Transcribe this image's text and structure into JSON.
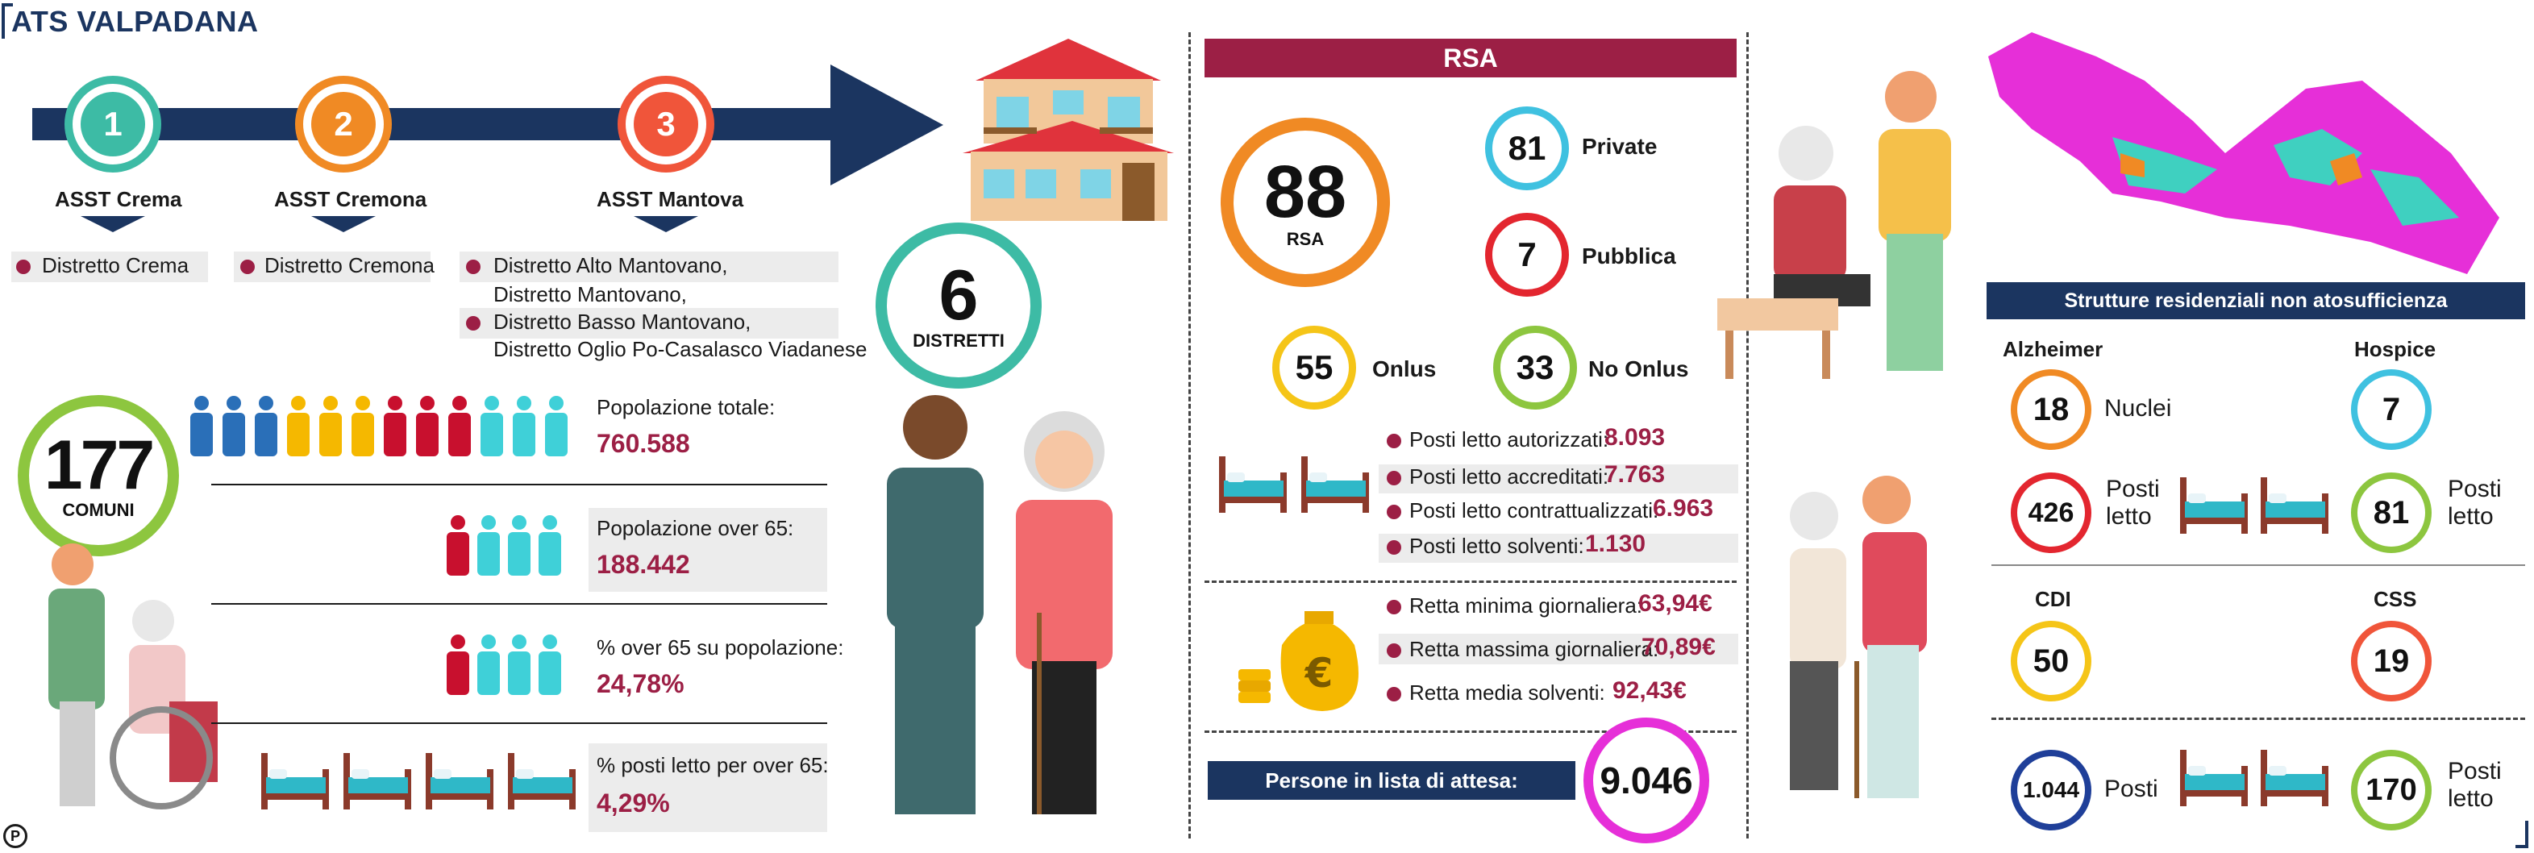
{
  "header": {
    "title": "ATS VALPADANA"
  },
  "timeline": {
    "items": [
      {
        "num": "1",
        "label": "ASST Crema",
        "color": "#3dbba5"
      },
      {
        "num": "2",
        "label": "ASST Cremona",
        "color": "#f08a24"
      },
      {
        "num": "3",
        "label": "ASST Mantova",
        "color": "#f0553a"
      }
    ]
  },
  "districts": {
    "crema": [
      "Distretto Crema"
    ],
    "cremona": [
      "Distretto Cremona"
    ],
    "mantova": [
      "Distretto Alto Mantovano,",
      "Distretto Mantovano,",
      "Distretto Basso Mantovano,",
      "Distretto Oglio Po-Casalasco Viadanese"
    ]
  },
  "distretti": {
    "value": "6",
    "label": "DISTRETTI"
  },
  "comuni": {
    "value": "177",
    "label": "COMUNI"
  },
  "population": {
    "total_label": "Popolazione totale:",
    "total_value": "760.588",
    "over65_label": "Popolazione over 65:",
    "over65_value": "188.442",
    "pct_label": "% over 65 su popolazione:",
    "pct_value": "24,78%",
    "beds_label": "% posti letto per over 65:",
    "beds_value": "4,29%"
  },
  "rsa": {
    "header": "RSA",
    "total": "88",
    "total_label": "RSA",
    "private_value": "81",
    "private_label": "Private",
    "public_value": "7",
    "public_label": "Pubblica",
    "onlus_value": "55",
    "onlus_label": "Onlus",
    "noonlus_value": "33",
    "noonlus_label": "No Onlus",
    "beds": [
      {
        "label": "Posti letto autorizzati:",
        "value": "8.093"
      },
      {
        "label": "Posti letto accreditati:",
        "value": "7.763"
      },
      {
        "label": "Posti letto contrattualizzati:",
        "value": "6.963"
      },
      {
        "label": "Posti letto solventi:",
        "value": "1.130"
      }
    ],
    "fees": [
      {
        "label": "Retta minima giornaliera:",
        "value": "63,94€"
      },
      {
        "label": "Retta massima giornaliera:",
        "value": "70,89€"
      },
      {
        "label": "Retta media solventi:",
        "value": "92,43€"
      }
    ],
    "waiting_label": "Persone in lista di attesa:",
    "waiting_value": "9.046"
  },
  "strutture": {
    "header": "Strutture residenziali non atosufficienza",
    "alzheimer_title": "Alzheimer",
    "alzheimer_nuclei": "18",
    "nuclei_label": "Nuclei",
    "alzheimer_posti": "426",
    "hospice_title": "Hospice",
    "hospice_value": "7",
    "hospice_posti": "81",
    "posti_letto_line1": "Posti",
    "posti_letto_line2": "letto",
    "cdi_title": "CDI",
    "cdi_value": "50",
    "cdi_posti": "1.044",
    "posti_label": "Posti",
    "css_title": "CSS",
    "css_value": "19",
    "css_posti": "170"
  },
  "footer": {
    "logo": "P"
  },
  "colors": {
    "navy": "#1b3560",
    "wine": "#9c1f45",
    "teal": "#3dbba5",
    "orange": "#f08a24",
    "red": "#e3262f",
    "yellow": "#f5c518",
    "green": "#8dc63f",
    "cyan": "#3fc1e0",
    "magenta": "#e62fd8",
    "blue": "#1f3f99"
  }
}
